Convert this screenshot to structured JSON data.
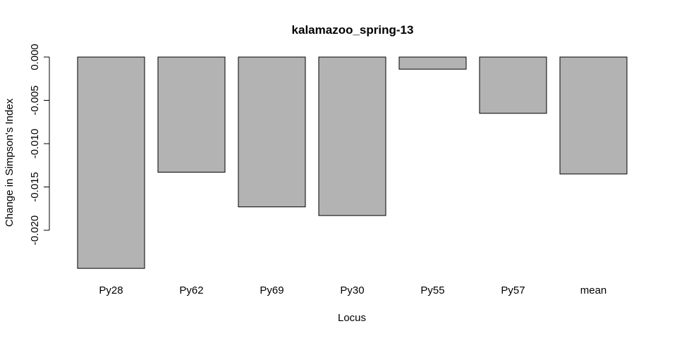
{
  "chart_data": {
    "type": "bar",
    "title": "kalamazoo_spring-13",
    "xlabel": "Locus",
    "ylabel": "Change in Simpson's Index",
    "categories": [
      "Py28",
      "Py62",
      "Py69",
      "Py30",
      "Py55",
      "Py57",
      "mean"
    ],
    "values": [
      -0.0244,
      -0.0133,
      -0.0173,
      -0.0183,
      -0.0014,
      -0.0065,
      -0.0135
    ],
    "ylim": [
      -0.0244,
      0.0
    ],
    "yticks": [
      0.0,
      -0.005,
      -0.01,
      -0.015,
      -0.02
    ],
    "ytick_labels": [
      "0.000",
      "-0.005",
      "-0.010",
      "-0.015",
      "-0.020"
    ],
    "bar_color": "#b3b3b3",
    "grid": false
  }
}
